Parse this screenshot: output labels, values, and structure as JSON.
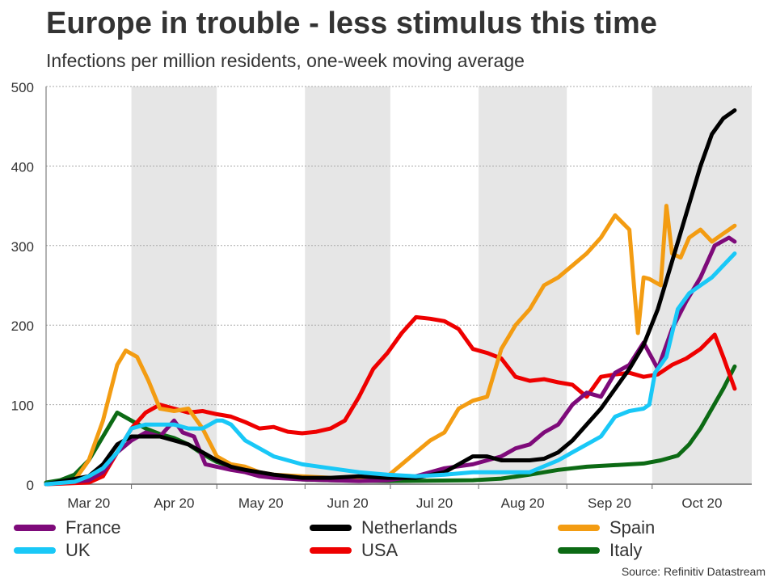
{
  "chart_data": {
    "type": "line",
    "title": "Europe in trouble - less stimulus this time",
    "subtitle": "Infections per million residents, one-week moving average",
    "source": "Source: Refinitiv Datastream",
    "ylim": [
      0,
      500
    ],
    "yticks": [
      "0",
      "100",
      "200",
      "300",
      "400",
      "500"
    ],
    "ytick_values": [
      0,
      100,
      200,
      300,
      400,
      500
    ],
    "xdomain": [
      0,
      248
    ],
    "months": [
      {
        "label": "Mar 20",
        "start": 0,
        "end": 30
      },
      {
        "label": "Apr 20",
        "start": 30,
        "end": 60
      },
      {
        "label": "May 20",
        "start": 60,
        "end": 91
      },
      {
        "label": "Jun 20",
        "start": 91,
        "end": 121
      },
      {
        "label": "Jul 20",
        "start": 121,
        "end": 152
      },
      {
        "label": "Aug 20",
        "start": 152,
        "end": 183
      },
      {
        "label": "Sep 20",
        "start": 183,
        "end": 213
      },
      {
        "label": "Oct 20",
        "start": 213,
        "end": 248
      }
    ],
    "shaded_months": [
      1,
      3,
      5,
      7
    ],
    "series": [
      {
        "name": "Italy",
        "color": "#0c6a14",
        "x": [
          0,
          5,
          10,
          15,
          20,
          25,
          30,
          35,
          40,
          45,
          50,
          55,
          60,
          65,
          70,
          75,
          80,
          90,
          100,
          120,
          150,
          160,
          170,
          180,
          190,
          200,
          210,
          216,
          222,
          226,
          230,
          234,
          238,
          242
        ],
        "y": [
          2,
          5,
          12,
          30,
          60,
          90,
          80,
          70,
          63,
          58,
          50,
          38,
          28,
          22,
          18,
          13,
          10,
          6,
          5,
          4,
          5,
          7,
          12,
          18,
          22,
          24,
          26,
          30,
          36,
          50,
          70,
          95,
          120,
          148
        ]
      },
      {
        "name": "USA",
        "color": "#ee0000",
        "x": [
          0,
          15,
          20,
          25,
          30,
          35,
          40,
          45,
          50,
          55,
          60,
          65,
          70,
          75,
          80,
          85,
          90,
          95,
          100,
          105,
          110,
          115,
          120,
          125,
          130,
          135,
          140,
          145,
          150,
          155,
          160,
          165,
          170,
          175,
          180,
          185,
          190,
          195,
          200,
          205,
          210,
          215,
          220,
          225,
          230,
          235,
          238,
          240,
          242
        ],
        "y": [
          0,
          2,
          10,
          40,
          70,
          90,
          100,
          95,
          90,
          92,
          88,
          85,
          78,
          70,
          72,
          66,
          64,
          66,
          70,
          80,
          110,
          145,
          165,
          190,
          210,
          208,
          205,
          195,
          170,
          165,
          158,
          135,
          130,
          132,
          128,
          125,
          110,
          135,
          138,
          140,
          135,
          138,
          150,
          158,
          170,
          188,
          160,
          140,
          120
        ]
      },
      {
        "name": "Spain",
        "color": "#f39c12",
        "x": [
          0,
          10,
          15,
          20,
          25,
          28,
          32,
          36,
          40,
          45,
          50,
          55,
          60,
          65,
          70,
          75,
          80,
          90,
          100,
          110,
          120,
          125,
          130,
          135,
          140,
          145,
          150,
          155,
          160,
          165,
          170,
          175,
          180,
          185,
          190,
          195,
          200,
          205,
          208,
          210,
          212,
          216,
          218,
          220,
          223,
          226,
          230,
          234,
          238,
          242
        ],
        "y": [
          0,
          5,
          30,
          80,
          150,
          168,
          160,
          130,
          95,
          92,
          95,
          70,
          35,
          25,
          22,
          15,
          12,
          10,
          8,
          6,
          10,
          25,
          40,
          55,
          65,
          95,
          105,
          110,
          170,
          200,
          220,
          250,
          260,
          275,
          290,
          310,
          338,
          320,
          190,
          260,
          258,
          250,
          350,
          290,
          285,
          310,
          320,
          305,
          315,
          325
        ]
      },
      {
        "name": "France",
        "color": "#7e0a7a",
        "x": [
          0,
          15,
          20,
          25,
          30,
          35,
          40,
          45,
          48,
          52,
          56,
          60,
          65,
          70,
          75,
          80,
          90,
          100,
          110,
          120,
          130,
          140,
          150,
          160,
          165,
          170,
          175,
          180,
          185,
          190,
          195,
          200,
          205,
          210,
          215,
          220,
          225,
          230,
          235,
          240,
          242
        ],
        "y": [
          0,
          5,
          15,
          40,
          55,
          65,
          60,
          80,
          65,
          60,
          25,
          22,
          18,
          15,
          10,
          8,
          6,
          5,
          4,
          5,
          10,
          20,
          25,
          35,
          45,
          50,
          65,
          75,
          100,
          115,
          110,
          140,
          150,
          178,
          145,
          195,
          230,
          260,
          300,
          310,
          305
        ]
      },
      {
        "name": "Netherlands",
        "color": "#000000",
        "x": [
          0,
          15,
          20,
          25,
          30,
          35,
          40,
          45,
          50,
          55,
          60,
          65,
          70,
          75,
          80,
          90,
          100,
          110,
          120,
          130,
          140,
          145,
          150,
          155,
          160,
          165,
          170,
          175,
          180,
          185,
          190,
          195,
          200,
          205,
          210,
          215,
          220,
          225,
          230,
          234,
          238,
          242
        ],
        "y": [
          0,
          10,
          25,
          50,
          60,
          60,
          60,
          55,
          50,
          40,
          30,
          22,
          18,
          15,
          12,
          8,
          8,
          10,
          8,
          8,
          15,
          25,
          35,
          35,
          30,
          30,
          30,
          32,
          40,
          55,
          75,
          95,
          120,
          145,
          175,
          220,
          280,
          340,
          400,
          440,
          460,
          470
        ]
      },
      {
        "name": "UK",
        "color": "#19c8f7",
        "x": [
          0,
          10,
          15,
          20,
          25,
          30,
          35,
          40,
          45,
          50,
          55,
          60,
          62,
          65,
          70,
          75,
          80,
          85,
          90,
          100,
          110,
          120,
          130,
          140,
          150,
          160,
          170,
          180,
          185,
          190,
          195,
          200,
          205,
          210,
          212,
          214,
          216,
          218,
          222,
          226,
          230,
          234,
          238,
          242
        ],
        "y": [
          0,
          3,
          10,
          20,
          40,
          70,
          75,
          75,
          75,
          70,
          70,
          80,
          80,
          75,
          55,
          45,
          35,
          30,
          25,
          20,
          15,
          12,
          10,
          12,
          15,
          15,
          15,
          30,
          40,
          50,
          60,
          85,
          92,
          95,
          100,
          140,
          150,
          160,
          220,
          240,
          250,
          260,
          275,
          290
        ]
      }
    ],
    "legend": [
      {
        "name": "France",
        "color": "#7e0a7a"
      },
      {
        "name": "Netherlands",
        "color": "#000000"
      },
      {
        "name": "Spain",
        "color": "#f39c12"
      },
      {
        "name": "UK",
        "color": "#19c8f7"
      },
      {
        "name": "USA",
        "color": "#ee0000"
      },
      {
        "name": "Italy",
        "color": "#0c6a14"
      }
    ]
  }
}
